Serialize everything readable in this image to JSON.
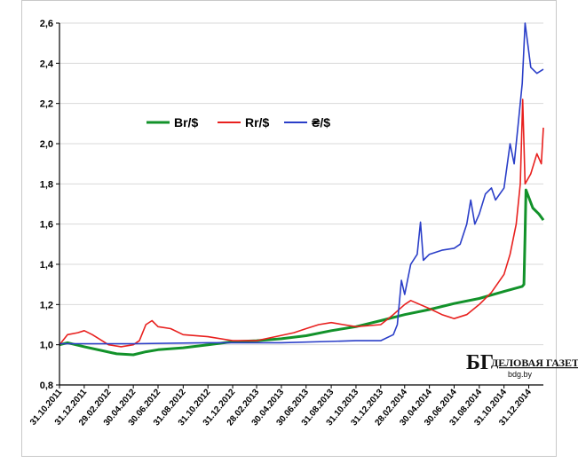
{
  "chart_data": {
    "type": "line",
    "title": "",
    "xlabel": "",
    "ylabel": "",
    "ylim": [
      0.8,
      2.6
    ],
    "y_ticks": [
      "0,8",
      "1,0",
      "1,2",
      "1,4",
      "1,6",
      "1,8",
      "2,0",
      "2,2",
      "2,4",
      "2,6"
    ],
    "grid": "horizontal",
    "legend_position": "top-left",
    "x_dates": [
      "2011-10-31",
      "2011-12-31",
      "2012-02-29",
      "2012-04-30",
      "2012-06-30",
      "2012-08-31",
      "2012-10-31",
      "2012-12-31",
      "2013-02-28",
      "2013-04-30",
      "2013-06-30",
      "2013-08-31",
      "2013-10-31",
      "2013-12-31",
      "2014-02-28",
      "2014-04-30",
      "2014-06-30",
      "2014-08-31",
      "2014-10-31",
      "2014-12-31"
    ],
    "x_tick_labels": [
      "31.10.2011",
      "31.12.2011",
      "29.02.2012",
      "30.04.2012",
      "30.06.2012",
      "31.08.2012",
      "31.10.2012",
      "31.12.2012",
      "28.02.2013",
      "30.04.2013",
      "30.06.2013",
      "31.08.2013",
      "31.10.2013",
      "31.12.2013",
      "28.02.2014",
      "30.04.2014",
      "30.06.2014",
      "31.08.2014",
      "31.10.2014",
      "31.12.2014"
    ],
    "x_end": "2015-02-05",
    "series": [
      {
        "name": "Br/$",
        "color": "#12922a",
        "points": [
          [
            "2011-10-31",
            1.0
          ],
          [
            "2011-11-20",
            1.01
          ],
          [
            "2011-12-31",
            0.99
          ],
          [
            "2012-02-15",
            0.97
          ],
          [
            "2012-03-20",
            0.955
          ],
          [
            "2012-04-30",
            0.95
          ],
          [
            "2012-05-31",
            0.965
          ],
          [
            "2012-06-30",
            0.975
          ],
          [
            "2012-08-31",
            0.985
          ],
          [
            "2012-10-31",
            1.0
          ],
          [
            "2012-12-31",
            1.015
          ],
          [
            "2013-02-28",
            1.02
          ],
          [
            "2013-04-30",
            1.03
          ],
          [
            "2013-06-30",
            1.045
          ],
          [
            "2013-08-31",
            1.07
          ],
          [
            "2013-10-31",
            1.09
          ],
          [
            "2013-12-31",
            1.12
          ],
          [
            "2014-02-28",
            1.15
          ],
          [
            "2014-04-30",
            1.175
          ],
          [
            "2014-06-30",
            1.205
          ],
          [
            "2014-08-31",
            1.23
          ],
          [
            "2014-10-31",
            1.265
          ],
          [
            "2014-12-15",
            1.29
          ],
          [
            "2014-12-19",
            1.3
          ],
          [
            "2014-12-22",
            1.55
          ],
          [
            "2014-12-24",
            1.77
          ],
          [
            "2015-01-10",
            1.68
          ],
          [
            "2015-01-25",
            1.65
          ],
          [
            "2015-02-05",
            1.62
          ]
        ]
      },
      {
        "name": "Rr/$",
        "color": "#e8201e",
        "points": [
          [
            "2011-10-31",
            1.0
          ],
          [
            "2011-11-20",
            1.05
          ],
          [
            "2011-12-15",
            1.06
          ],
          [
            "2011-12-31",
            1.07
          ],
          [
            "2012-01-20",
            1.05
          ],
          [
            "2012-02-29",
            1.0
          ],
          [
            "2012-03-31",
            0.99
          ],
          [
            "2012-04-30",
            1.0
          ],
          [
            "2012-05-15",
            1.02
          ],
          [
            "2012-05-31",
            1.1
          ],
          [
            "2012-06-15",
            1.12
          ],
          [
            "2012-06-30",
            1.09
          ],
          [
            "2012-07-31",
            1.08
          ],
          [
            "2012-08-31",
            1.05
          ],
          [
            "2012-10-31",
            1.04
          ],
          [
            "2012-12-31",
            1.02
          ],
          [
            "2013-02-28",
            1.02
          ],
          [
            "2013-04-15",
            1.04
          ],
          [
            "2013-05-31",
            1.06
          ],
          [
            "2013-06-30",
            1.08
          ],
          [
            "2013-07-31",
            1.1
          ],
          [
            "2013-08-31",
            1.11
          ],
          [
            "2013-09-30",
            1.1
          ],
          [
            "2013-10-31",
            1.09
          ],
          [
            "2013-12-31",
            1.1
          ],
          [
            "2014-01-31",
            1.15
          ],
          [
            "2014-02-28",
            1.2
          ],
          [
            "2014-03-15",
            1.22
          ],
          [
            "2014-04-30",
            1.18
          ],
          [
            "2014-05-31",
            1.15
          ],
          [
            "2014-06-30",
            1.13
          ],
          [
            "2014-07-31",
            1.15
          ],
          [
            "2014-08-31",
            1.2
          ],
          [
            "2014-09-30",
            1.26
          ],
          [
            "2014-10-31",
            1.35
          ],
          [
            "2014-11-15",
            1.45
          ],
          [
            "2014-11-30",
            1.6
          ],
          [
            "2014-12-10",
            1.8
          ],
          [
            "2014-12-16",
            2.22
          ],
          [
            "2014-12-22",
            1.8
          ],
          [
            "2015-01-05",
            1.85
          ],
          [
            "2015-01-20",
            1.95
          ],
          [
            "2015-01-31",
            1.9
          ],
          [
            "2015-02-05",
            2.08
          ]
        ]
      },
      {
        "name": "₴/$",
        "color": "#2a3ec8",
        "points": [
          [
            "2011-10-31",
            1.005
          ],
          [
            "2012-04-30",
            1.005
          ],
          [
            "2012-10-31",
            1.01
          ],
          [
            "2013-04-30",
            1.01
          ],
          [
            "2013-10-31",
            1.02
          ],
          [
            "2013-12-31",
            1.02
          ],
          [
            "2014-01-31",
            1.05
          ],
          [
            "2014-02-10",
            1.1
          ],
          [
            "2014-02-20",
            1.32
          ],
          [
            "2014-02-28",
            1.25
          ],
          [
            "2014-03-15",
            1.4
          ],
          [
            "2014-03-31",
            1.45
          ],
          [
            "2014-04-08",
            1.61
          ],
          [
            "2014-04-15",
            1.42
          ],
          [
            "2014-04-30",
            1.45
          ],
          [
            "2014-05-31",
            1.47
          ],
          [
            "2014-06-30",
            1.48
          ],
          [
            "2014-07-15",
            1.5
          ],
          [
            "2014-07-31",
            1.6
          ],
          [
            "2014-08-10",
            1.72
          ],
          [
            "2014-08-20",
            1.6
          ],
          [
            "2014-08-31",
            1.65
          ],
          [
            "2014-09-15",
            1.75
          ],
          [
            "2014-09-30",
            1.78
          ],
          [
            "2014-10-10",
            1.72
          ],
          [
            "2014-10-31",
            1.78
          ],
          [
            "2014-11-15",
            2.0
          ],
          [
            "2014-11-25",
            1.9
          ],
          [
            "2014-12-05",
            2.1
          ],
          [
            "2014-12-15",
            2.3
          ],
          [
            "2014-12-22",
            2.6
          ],
          [
            "2015-01-05",
            2.38
          ],
          [
            "2015-01-20",
            2.35
          ],
          [
            "2015-02-05",
            2.37
          ]
        ]
      }
    ]
  },
  "logo": {
    "mark": "БГ",
    "name": "ДЕЛОВАЯ ГАЗЕТА",
    "url": "bdg.by"
  }
}
